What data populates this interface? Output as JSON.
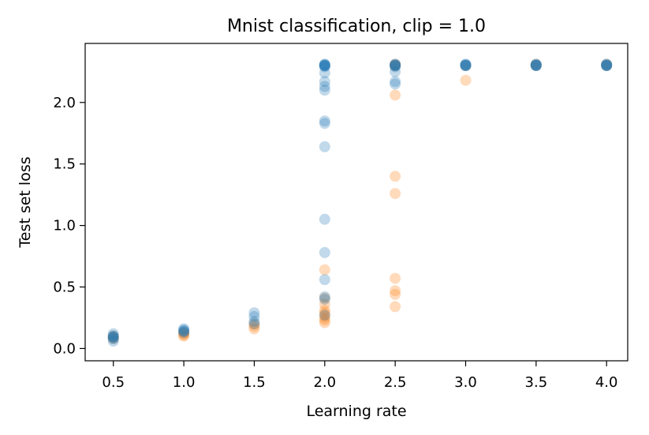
{
  "chart_data": {
    "type": "scatter",
    "title": "Mnist classification, clip = 1.0",
    "xlabel": "Learning rate",
    "ylabel": "Test set loss",
    "xlim": [
      0.3,
      4.15
    ],
    "ylim": [
      -0.1,
      2.48
    ],
    "xticks": [
      "0.5",
      "1.0",
      "1.5",
      "2.0",
      "2.5",
      "3.0",
      "3.5",
      "4.0"
    ],
    "yticks": [
      "0.0",
      "0.5",
      "1.0",
      "1.5",
      "2.0"
    ],
    "grid": false,
    "marker_opacity": 0.28,
    "series": [
      {
        "color": "#ff7f0e",
        "points": [
          [
            0.5,
            0.08
          ],
          [
            0.5,
            0.1
          ],
          [
            0.5,
            0.09
          ],
          [
            1.0,
            0.11
          ],
          [
            1.0,
            0.12
          ],
          [
            1.0,
            0.13
          ],
          [
            1.0,
            0.1
          ],
          [
            1.5,
            0.16
          ],
          [
            1.5,
            0.18
          ],
          [
            1.5,
            0.2
          ],
          [
            2.0,
            0.21
          ],
          [
            2.0,
            0.23
          ],
          [
            2.0,
            0.25
          ],
          [
            2.0,
            0.27
          ],
          [
            2.0,
            0.29
          ],
          [
            2.0,
            0.31
          ],
          [
            2.0,
            0.36
          ],
          [
            2.0,
            0.41
          ],
          [
            2.0,
            0.64
          ],
          [
            2.5,
            0.34
          ],
          [
            2.5,
            0.44
          ],
          [
            2.5,
            0.47
          ],
          [
            2.5,
            0.57
          ],
          [
            2.5,
            1.26
          ],
          [
            2.5,
            1.4
          ],
          [
            2.5,
            2.06
          ],
          [
            2.5,
            2.3
          ],
          [
            2.5,
            2.31
          ],
          [
            2.5,
            2.3
          ],
          [
            3.0,
            2.18
          ],
          [
            3.0,
            2.3
          ],
          [
            3.5,
            2.31
          ],
          [
            3.5,
            2.3
          ],
          [
            4.0,
            2.31
          ],
          [
            4.0,
            2.3
          ]
        ]
      },
      {
        "color": "#1f77b4",
        "points": [
          [
            0.5,
            0.06
          ],
          [
            0.5,
            0.08
          ],
          [
            0.5,
            0.09
          ],
          [
            0.5,
            0.1
          ],
          [
            0.5,
            0.12
          ],
          [
            0.5,
            0.1
          ],
          [
            0.5,
            0.09
          ],
          [
            1.0,
            0.13
          ],
          [
            1.0,
            0.14
          ],
          [
            1.0,
            0.15
          ],
          [
            1.0,
            0.16
          ],
          [
            1.0,
            0.14
          ],
          [
            1.5,
            0.2
          ],
          [
            1.5,
            0.22
          ],
          [
            1.5,
            0.26
          ],
          [
            1.5,
            0.29
          ],
          [
            2.0,
            0.27
          ],
          [
            2.0,
            0.4
          ],
          [
            2.0,
            0.42
          ],
          [
            2.0,
            0.56
          ],
          [
            2.0,
            0.78
          ],
          [
            2.0,
            1.05
          ],
          [
            2.0,
            1.64
          ],
          [
            2.0,
            1.83
          ],
          [
            2.0,
            1.85
          ],
          [
            2.0,
            2.1
          ],
          [
            2.0,
            2.13
          ],
          [
            2.0,
            2.17
          ],
          [
            2.0,
            2.24
          ],
          [
            2.0,
            2.29
          ],
          [
            2.0,
            2.3
          ],
          [
            2.0,
            2.31
          ],
          [
            2.0,
            2.3
          ],
          [
            2.0,
            2.3
          ],
          [
            2.0,
            2.31
          ],
          [
            2.0,
            2.3
          ],
          [
            2.5,
            2.15
          ],
          [
            2.5,
            2.17
          ],
          [
            2.5,
            2.25
          ],
          [
            2.5,
            2.29
          ],
          [
            2.5,
            2.3
          ],
          [
            2.5,
            2.31
          ],
          [
            2.5,
            2.3
          ],
          [
            2.5,
            2.3
          ],
          [
            2.5,
            2.31
          ],
          [
            3.0,
            2.3
          ],
          [
            3.0,
            2.31
          ],
          [
            3.0,
            2.3
          ],
          [
            3.0,
            2.3
          ],
          [
            3.0,
            2.31
          ],
          [
            3.0,
            2.3
          ],
          [
            3.5,
            2.3
          ],
          [
            3.5,
            2.31
          ],
          [
            3.5,
            2.3
          ],
          [
            3.5,
            2.3
          ],
          [
            3.5,
            2.3
          ],
          [
            3.5,
            2.31
          ],
          [
            4.0,
            2.3
          ],
          [
            4.0,
            2.31
          ],
          [
            4.0,
            2.3
          ],
          [
            4.0,
            2.3
          ],
          [
            4.0,
            2.3
          ],
          [
            4.0,
            2.31
          ]
        ]
      }
    ]
  }
}
